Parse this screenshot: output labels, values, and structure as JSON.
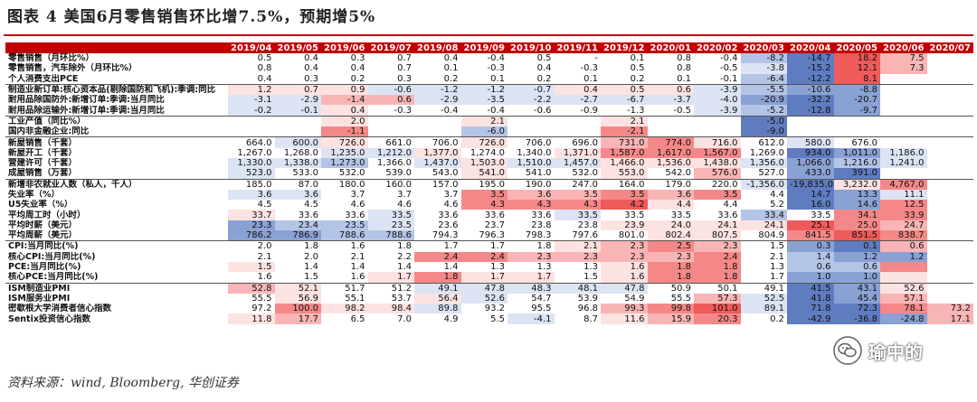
{
  "title": "图表 4   美国6月零售销售环比增7.5%，预期增5%",
  "source": "资料来源：wind, Bloomberg, 华创证券",
  "watermark": "瑜中的",
  "colors": {
    "header_bg": "#c00000",
    "header_text": "#ffffff",
    "red_scale": [
      "#fde2e2",
      "#f9b5b5",
      "#f48888",
      "#ef5a5a"
    ],
    "blue_scale": [
      "#dce4f4",
      "#b4c4e6",
      "#8aa1d3",
      "#5f7cc0"
    ]
  },
  "columns": [
    "",
    "2019/04",
    "2019/05",
    "2019/06",
    "2019/07",
    "2019/08",
    "2019/09",
    "2019/10",
    "2019/11",
    "2019/12",
    "2020/01",
    "2020/02",
    "2020/03",
    "2020/04",
    "2020/05",
    "2020/06",
    "2020/07"
  ],
  "rows": [
    {
      "label": "零售销售（月环比%）",
      "values": [
        "0.5",
        "0.4",
        "0.3",
        "0.7",
        "0.4",
        "-0.4",
        "0.5",
        "-",
        "0.1",
        "0.8",
        "-0.4",
        "-8.2",
        "-14.7",
        "18.2",
        "7.5",
        ""
      ],
      "colors": [
        "",
        "",
        "",
        "",
        "",
        "",
        "",
        "",
        "",
        "",
        "",
        "b2",
        "b4",
        "r4",
        "r2",
        ""
      ]
    },
    {
      "label": "零售销售，汽车除外（月环比%）",
      "values": [
        "0.8",
        "0.4",
        "0.4",
        "0.7",
        "0.1",
        "-0.3",
        "0.4",
        "-0.3",
        "0.5",
        "0.8",
        "-0.5",
        "-3.8",
        "-15.2",
        "12.1",
        "7.3",
        ""
      ],
      "colors": [
        "",
        "",
        "",
        "",
        "",
        "",
        "",
        "",
        "",
        "",
        "",
        "b1",
        "b4",
        "r4",
        "r2",
        ""
      ]
    },
    {
      "label": "个人消费支出PCE",
      "values": [
        "0.4",
        "0.3",
        "0.2",
        "0.3",
        "0.2",
        "0.1",
        "0.2",
        "0.1",
        "0.2",
        "0.1",
        "-0.1",
        "-6.4",
        "-12.2",
        "8.1",
        "",
        ""
      ],
      "colors": [
        "",
        "",
        "",
        "",
        "",
        "",
        "",
        "",
        "",
        "",
        "",
        "b2",
        "b4",
        "r4",
        "",
        ""
      ]
    },
    {
      "label": "制造业新订单:核心资本品(剔除国防和飞机):季调:同比",
      "values": [
        "1.2",
        "0.7",
        "0.9",
        "-0.6",
        "-1.2",
        "-1.2",
        "-0.7",
        "0.4",
        "0.5",
        "0.6",
        "-3.9",
        "-5.5",
        "-10.6",
        "-8.8",
        "",
        ""
      ],
      "colors": [
        "r1",
        "r1",
        "r1",
        "b1",
        "b1",
        "b1",
        "b1",
        "r1",
        "r1",
        "r1",
        "b1",
        "b2",
        "b3",
        "b3",
        "",
        ""
      ],
      "sep": true
    },
    {
      "label": "耐用品除国防外:新增订单:季调:当月同比",
      "values": [
        "-3.1",
        "-2.9",
        "-1.4",
        "0.6",
        "-2.9",
        "-3.5",
        "-2.2",
        "-2.7",
        "-6.7",
        "-3.7",
        "-4.0",
        "-20.9",
        "-32.2",
        "-20.7",
        "",
        ""
      ],
      "colors": [
        "b1",
        "b1",
        "r2",
        "r2",
        "b1",
        "b1",
        "b1",
        "b1",
        "b1",
        "b1",
        "b1",
        "b3",
        "b4",
        "b3",
        "",
        ""
      ]
    },
    {
      "label": "耐用品除运输外:新增订单:季调:当月同比",
      "values": [
        "-0.2",
        "-0.1",
        "0.4",
        "-0.3",
        "-0.4",
        "-0.4",
        "-0.6",
        "-0.9",
        "-1.3",
        "-0.5",
        "-3.9",
        "-5.2",
        "-12.8",
        "-9.7",
        "",
        ""
      ],
      "colors": [
        "b1",
        "b1",
        "r1",
        "",
        "",
        "",
        "",
        "",
        "",
        "",
        "b1",
        "b2",
        "b4",
        "b3",
        "",
        ""
      ]
    },
    {
      "label": "工业产值（同比%）",
      "values": [
        "",
        "",
        "2.0",
        "",
        "",
        "2.1",
        "",
        "",
        "2.1",
        "",
        "",
        "-5.0",
        "",
        "",
        "",
        ""
      ],
      "colors": [
        "",
        "",
        "r1",
        "",
        "",
        "r1",
        "",
        "",
        "r1",
        "",
        "",
        "b4",
        "",
        "",
        "",
        ""
      ],
      "sep": true
    },
    {
      "label": "国内非金融企业:同比",
      "values": [
        "",
        "",
        "-1.1",
        "",
        "",
        "-6.0",
        "",
        "",
        "-2.1",
        "",
        "",
        "-9.0",
        "",
        "",
        "",
        ""
      ],
      "colors": [
        "",
        "",
        "r3",
        "",
        "",
        "b2",
        "",
        "",
        "r3",
        "",
        "",
        "b4",
        "",
        "",
        "",
        ""
      ]
    },
    {
      "label": "新屋销售（千套）",
      "values": [
        "664.0",
        "600.0",
        "726.0",
        "661.0",
        "706.0",
        "726.0",
        "706.0",
        "696.0",
        "731.0",
        "774.0",
        "716.0",
        "612.0",
        "580.0",
        "676.0",
        "",
        ""
      ],
      "colors": [
        "",
        "b1",
        "r1",
        "",
        "",
        "r1",
        "",
        "",
        "r2",
        "r3",
        "r1",
        "",
        "b1",
        "",
        "",
        ""
      ],
      "sep": true
    },
    {
      "label": "新屋开工（千套）",
      "values": [
        "1,267.0",
        "1,268.0",
        "1,235.0",
        "1,212.0",
        "1,377.0",
        "1,274.0",
        "1,340.0",
        "1,371.0",
        "1,587.0",
        "1,617.0",
        "1,567.0",
        "1,269.0",
        "934.0",
        "1,011.0",
        "1,186.0",
        ""
      ],
      "colors": [
        "",
        "",
        "b1",
        "b1",
        "r1",
        "",
        "",
        "r1",
        "r3",
        "r3",
        "r3",
        "",
        "b4",
        "b3",
        "b1",
        ""
      ]
    },
    {
      "label": "营建许可（千套）",
      "values": [
        "1,330.0",
        "1,338.0",
        "1,273.0",
        "1,366.0",
        "1,437.0",
        "1,503.0",
        "1,510.0",
        "1,457.0",
        "1,466.0",
        "1,536.0",
        "1,438.0",
        "1,356.0",
        "1,066.0",
        "1,216.0",
        "1,241.0",
        ""
      ],
      "colors": [
        "b1",
        "b1",
        "b2",
        "",
        "b1",
        "r1",
        "b1",
        "b1",
        "r1",
        "r1",
        "r1",
        "b1",
        "b3",
        "b2",
        "b1",
        ""
      ]
    },
    {
      "label": "成屋销售（万套）",
      "values": [
        "523.0",
        "533.0",
        "532.0",
        "539.0",
        "543.0",
        "541.0",
        "541.0",
        "532.0",
        "553.0",
        "542.0",
        "576.0",
        "527.0",
        "433.0",
        "391.0",
        "",
        ""
      ],
      "colors": [
        "b1",
        "",
        "",
        "",
        "",
        "r1",
        "",
        "",
        "r1",
        "",
        "r2",
        "",
        "b3",
        "b4",
        "",
        ""
      ]
    },
    {
      "label": "新增非农就业人数（私人，千人）",
      "values": [
        "185.0",
        "87.0",
        "180.0",
        "160.0",
        "157.0",
        "195.0",
        "190.0",
        "247.0",
        "164.0",
        "179.0",
        "220.0",
        "-1,356.0",
        "-19,835.0",
        "3,232.0",
        "4,767.0",
        ""
      ],
      "colors": [
        "",
        "",
        "",
        "",
        "",
        "",
        "",
        "",
        "",
        "",
        "",
        "b1",
        "b4",
        "r1",
        "r3",
        ""
      ],
      "sep": true
    },
    {
      "label": "失业率（%）",
      "values": [
        "3.6",
        "3.6",
        "3.7",
        "3.7",
        "3.7",
        "3.5",
        "3.6",
        "3.5",
        "3.5",
        "3.6",
        "3.5",
        "4.4",
        "14.7",
        "13.3",
        "11.1",
        ""
      ],
      "colors": [
        "b1",
        "b1",
        "",
        "",
        "",
        "r3",
        "r2",
        "r2",
        "r3",
        "r2",
        "r3",
        "",
        "b4",
        "b3",
        "b1",
        ""
      ]
    },
    {
      "label": "U5失业率（%）",
      "values": [
        "4.5",
        "4.5",
        "4.6",
        "4.6",
        "4.6",
        "4.3",
        "4.3",
        "4.3",
        "4.2",
        "4.4",
        "4.4",
        "5.2",
        "16.0",
        "14.6",
        "12.5",
        ""
      ],
      "colors": [
        "",
        "",
        "",
        "",
        "",
        "r3",
        "r3",
        "r3",
        "r4",
        "r1",
        "",
        "",
        "b4",
        "b3",
        "r3",
        ""
      ]
    },
    {
      "label": "平均周工时（小时）",
      "values": [
        "33.7",
        "33.6",
        "33.6",
        "33.5",
        "33.6",
        "33.6",
        "33.6",
        "33.5",
        "33.5",
        "33.5",
        "33.6",
        "33.4",
        "33.5",
        "34.1",
        "33.9",
        ""
      ],
      "colors": [
        "r1",
        "",
        "",
        "b1",
        "",
        "",
        "",
        "b1",
        "",
        "",
        "",
        "b2",
        "",
        "r3",
        "r3",
        ""
      ]
    },
    {
      "label": "平均时薪（美元）",
      "values": [
        "23.3",
        "23.4",
        "23.5",
        "23.5",
        "23.6",
        "23.7",
        "23.8",
        "23.8",
        "23.9",
        "24.0",
        "24.1",
        "24.1",
        "25.1",
        "25.0",
        "24.7",
        ""
      ],
      "colors": [
        "b3",
        "b2",
        "b2",
        "b1",
        "",
        "",
        "",
        "",
        "r1",
        "r1",
        "r1",
        "r1",
        "r4",
        "r3",
        "r2",
        ""
      ]
    },
    {
      "label": "平均周薪（美元）",
      "values": [
        "786.2",
        "786.9",
        "788.6",
        "788.6",
        "794.3",
        "796.3",
        "798.3",
        "797.6",
        "801.0",
        "802.4",
        "807.5",
        "804.9",
        "841.5",
        "851.5",
        "838.7",
        ""
      ],
      "colors": [
        "b3",
        "b3",
        "b2",
        "b2",
        "",
        "",
        "",
        "",
        "",
        "r1",
        "r1",
        "",
        "r3",
        "r4",
        "r3",
        ""
      ]
    },
    {
      "label": "CPI:当月同比(%)",
      "values": [
        "2.0",
        "1.8",
        "1.6",
        "1.8",
        "1.7",
        "1.7",
        "1.8",
        "2.1",
        "2.3",
        "2.5",
        "2.3",
        "1.5",
        "0.3",
        "0.1",
        "0.6",
        ""
      ],
      "colors": [
        "",
        "",
        "",
        "",
        "",
        "",
        "",
        "r1",
        "r2",
        "r3",
        "r2",
        "",
        "b3",
        "b4",
        "r2",
        ""
      ],
      "sep": true
    },
    {
      "label": "核心CPI:当月同比(%)",
      "values": [
        "2.1",
        "2.0",
        "2.1",
        "2.2",
        "2.4",
        "2.4",
        "2.3",
        "2.3",
        "2.3",
        "2.3",
        "2.4",
        "2.1",
        "1.4",
        "1.2",
        "1.2",
        ""
      ],
      "colors": [
        "",
        "",
        "",
        "",
        "r3",
        "r3",
        "r2",
        "r2",
        "r2",
        "r2",
        "r3",
        "",
        "b2",
        "b3",
        "b3",
        ""
      ]
    },
    {
      "label": "PCE:当月同比(%)",
      "values": [
        "1.5",
        "1.4",
        "1.4",
        "1.4",
        "1.4",
        "1.3",
        "1.3",
        "1.3",
        "1.6",
        "1.8",
        "1.8",
        "1.3",
        "0.6",
        "0.6",
        "",
        ""
      ],
      "colors": [
        "r1",
        "",
        "",
        "",
        "",
        "",
        "",
        "",
        "r1",
        "r3",
        "r3",
        "",
        "b2",
        "b2",
        "r3",
        ""
      ]
    },
    {
      "label": "核心PCE:当月同比(%)",
      "values": [
        "1.6",
        "1.5",
        "1.6",
        "1.7",
        "1.8",
        "1.7",
        "1.7",
        "1.5",
        "1.6",
        "1.8",
        "1.8",
        "1.7",
        "1.0",
        "1.0",
        "",
        ""
      ],
      "colors": [
        "",
        "",
        "",
        "r1",
        "r3",
        "r1",
        "r1",
        "",
        "r1",
        "r3",
        "r3",
        "",
        "b3",
        "b3",
        "r1",
        ""
      ]
    },
    {
      "label": "ISM制造业PMI",
      "values": [
        "52.8",
        "52.1",
        "51.7",
        "51.2",
        "49.1",
        "47.8",
        "48.3",
        "48.1",
        "47.8",
        "50.9",
        "50.1",
        "49.1",
        "41.5",
        "43.1",
        "52.6",
        ""
      ],
      "colors": [
        "r2",
        "r1",
        "",
        "",
        "b1",
        "b1",
        "b1",
        "b1",
        "b1",
        "",
        "",
        "",
        "b4",
        "b3",
        "r1",
        ""
      ],
      "sep": true
    },
    {
      "label": "ISM服务业PMI",
      "values": [
        "55.5",
        "56.9",
        "55.1",
        "53.7",
        "56.4",
        "52.6",
        "54.7",
        "53.9",
        "54.9",
        "55.5",
        "57.3",
        "52.5",
        "41.8",
        "45.4",
        "57.1",
        ""
      ],
      "colors": [
        "",
        "r1",
        "",
        "",
        "r1",
        "b1",
        "",
        "",
        "",
        "",
        "r2",
        "b1",
        "b4",
        "b3",
        "r2",
        ""
      ]
    },
    {
      "label": "密歇根大学消费者信心指数",
      "values": [
        "97.2",
        "100.0",
        "98.2",
        "98.4",
        "89.8",
        "93.2",
        "95.5",
        "96.8",
        "99.3",
        "99.8",
        "101.0",
        "89.1",
        "71.8",
        "72.3",
        "78.1",
        "73.2"
      ],
      "colors": [
        "",
        "r3",
        "r1",
        "r1",
        "b1",
        "",
        "",
        "",
        "r2",
        "r3",
        "r4",
        "b1",
        "b4",
        "b4",
        "r3",
        "r2"
      ]
    },
    {
      "label": "Sentix投资信心指数",
      "values": [
        "11.8",
        "17.7",
        "6.5",
        "7.0",
        "4.9",
        "5.5",
        "-4.1",
        "8.7",
        "11.6",
        "15.9",
        "20.3",
        "0.2",
        "-42.9",
        "-36.8",
        "-24.8",
        "17.1"
      ],
      "colors": [
        "r1",
        "r2",
        "",
        "",
        "",
        "",
        "b1",
        "",
        "r1",
        "r2",
        "r3",
        "",
        "b4",
        "b4",
        "b3",
        "r2"
      ]
    }
  ]
}
